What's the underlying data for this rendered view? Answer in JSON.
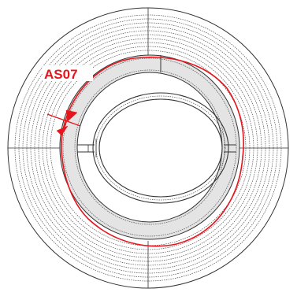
{
  "annotation": {
    "label": "AS07",
    "color": "#e8141c"
  },
  "colors": {
    "stroke": "#333333",
    "dashed": "#555555",
    "fill": "#e4e4e4",
    "background": "#ffffff"
  }
}
